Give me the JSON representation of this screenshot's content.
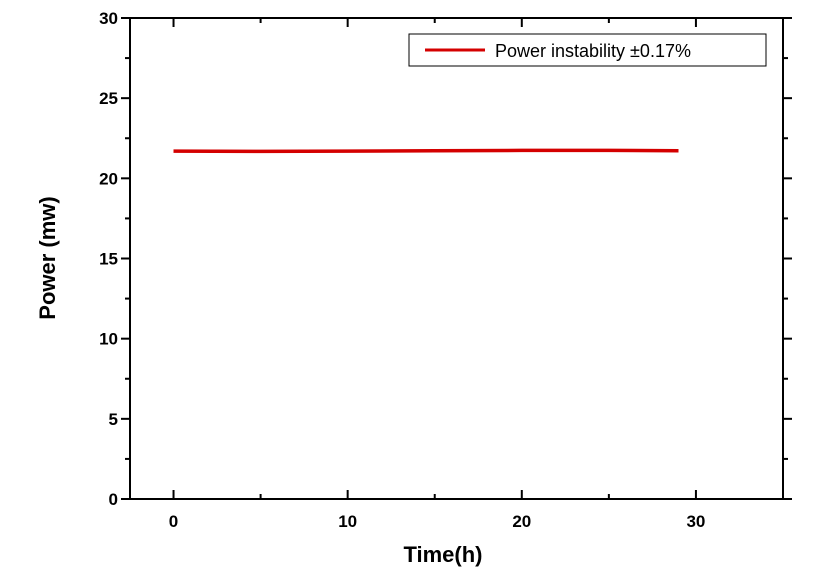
{
  "chart_data": {
    "type": "line",
    "xlabel": "Time(h)",
    "ylabel": "Power (mw)",
    "xlim": [
      -2.5,
      35
    ],
    "ylim": [
      0,
      30
    ],
    "x_ticks": [
      0,
      10,
      20,
      30
    ],
    "y_ticks": [
      0,
      5,
      10,
      15,
      20,
      25,
      30
    ],
    "x_tick_labels": [
      "0",
      "10",
      "20",
      "30"
    ],
    "y_tick_labels": [
      "0",
      "5",
      "10",
      "15",
      "20",
      "25",
      "30"
    ],
    "grid": false,
    "legend_position": "top-right",
    "series": [
      {
        "name": "Power instability ±0.17%",
        "color": "#d40000",
        "x": [
          0,
          5,
          10,
          15,
          20,
          25,
          29
        ],
        "y": [
          21.7,
          21.68,
          21.7,
          21.72,
          21.74,
          21.74,
          21.72
        ]
      }
    ]
  }
}
